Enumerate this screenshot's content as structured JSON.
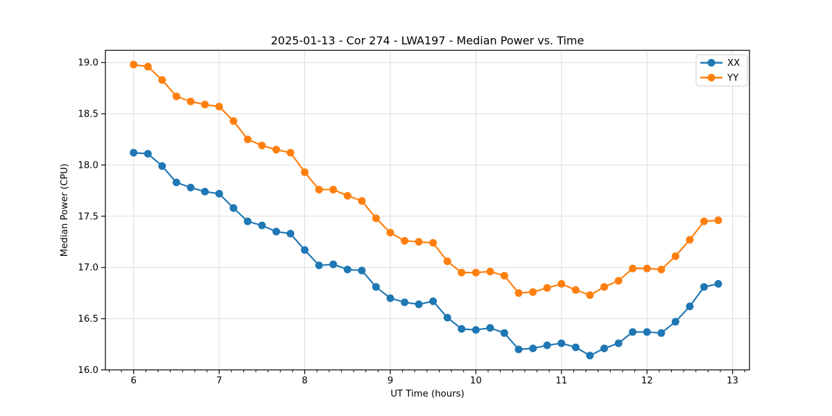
{
  "chart_data": {
    "type": "line",
    "title": "2025-01-13 - Cor 274 - LWA197 - Median Power vs. Time",
    "xlabel": "UT Time (hours)",
    "ylabel": "Median Power (CPU)",
    "xlim": [
      5.67,
      13.198
    ],
    "ylim": [
      16.0,
      19.12
    ],
    "xticks": [
      6,
      7,
      8,
      9,
      10,
      11,
      12,
      13
    ],
    "yticks": [
      16.0,
      16.5,
      17.0,
      17.5,
      18.0,
      18.5,
      19.0
    ],
    "x_minor_subdivisions": 7,
    "grid": true,
    "grid_color": "#dcdcdc",
    "legend_position": "upper right",
    "x": [
      6.0,
      6.167,
      6.333,
      6.5,
      6.667,
      6.833,
      7.0,
      7.167,
      7.333,
      7.5,
      7.667,
      7.833,
      8.0,
      8.167,
      8.333,
      8.5,
      8.667,
      8.833,
      9.0,
      9.167,
      9.333,
      9.5,
      9.667,
      9.833,
      10.0,
      10.167,
      10.333,
      10.5,
      10.667,
      10.833,
      11.0,
      11.167,
      11.333,
      11.5,
      11.667,
      11.833,
      12.0,
      12.167,
      12.333,
      12.5,
      12.667,
      12.833
    ],
    "series": [
      {
        "name": "XX",
        "color": "#1f77b4",
        "values": [
          18.12,
          18.11,
          17.99,
          17.83,
          17.78,
          17.74,
          17.72,
          17.58,
          17.45,
          17.41,
          17.35,
          17.33,
          17.17,
          17.02,
          17.03,
          16.98,
          16.97,
          16.81,
          16.7,
          16.66,
          16.64,
          16.67,
          16.51,
          16.4,
          16.39,
          16.41,
          16.36,
          16.2,
          16.21,
          16.24,
          16.26,
          16.22,
          16.14,
          16.21,
          16.26,
          16.37,
          16.37,
          16.36,
          16.47,
          16.62,
          16.81,
          16.84
        ]
      },
      {
        "name": "YY",
        "color": "#ff7f0e",
        "values": [
          18.98,
          18.96,
          18.83,
          18.67,
          18.62,
          18.59,
          18.57,
          18.43,
          18.25,
          18.19,
          18.15,
          18.12,
          17.93,
          17.76,
          17.76,
          17.7,
          17.65,
          17.48,
          17.34,
          17.26,
          17.25,
          17.24,
          17.06,
          16.95,
          16.95,
          16.96,
          16.92,
          16.75,
          16.76,
          16.8,
          16.84,
          16.78,
          16.73,
          16.81,
          16.87,
          16.99,
          16.99,
          16.98,
          17.11,
          17.27,
          17.45,
          17.46
        ]
      }
    ]
  }
}
